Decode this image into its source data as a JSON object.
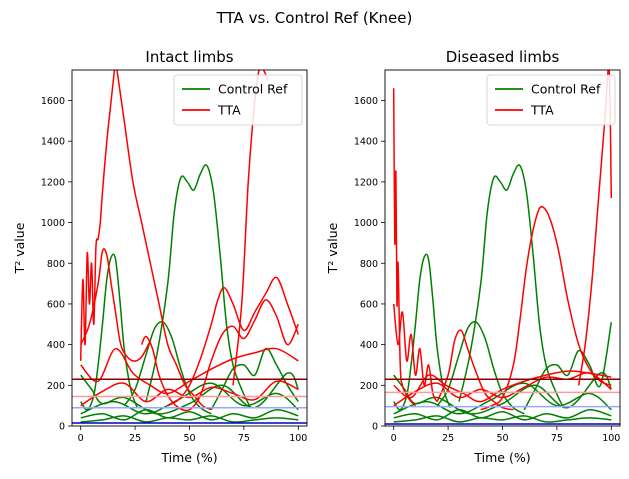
{
  "figure": {
    "suptitle": "TTA vs. Control Ref (Knee)"
  },
  "colors": {
    "control": "#008000",
    "tta": "#ff0000",
    "threshold_dark": "#8b0000",
    "threshold_light": "#9aa6ff",
    "threshold_blue": "#0000cc",
    "threshold_pink": "#ff9a9a"
  },
  "chart_data": [
    {
      "type": "line",
      "title": "Intact limbs",
      "xlabel": "Time  (%)",
      "ylabel": "T² value",
      "xlim": [
        -4,
        104
      ],
      "ylim": [
        0,
        1750
      ],
      "xticks": [
        0,
        25,
        50,
        75,
        100
      ],
      "yticks": [
        0,
        200,
        400,
        600,
        800,
        1000,
        1200,
        1400,
        1600
      ],
      "grid": false,
      "legend": {
        "placement": "top-right",
        "entries": [
          "Control Ref",
          "TTA"
        ]
      },
      "thresholds": [
        {
          "y": 230,
          "color_key": "threshold_dark"
        },
        {
          "y": 145,
          "color_key": "threshold_pink"
        },
        {
          "y": 90,
          "color_key": "threshold_light"
        },
        {
          "y": 15,
          "color_key": "threshold_blue"
        }
      ],
      "series": [
        {
          "name": "Control Ref",
          "color_key": "control",
          "x": [
            0,
            3,
            6,
            8,
            10,
            12,
            14,
            16,
            18,
            20,
            23,
            26
          ],
          "y": [
            120,
            80,
            150,
            300,
            500,
            720,
            830,
            820,
            620,
            380,
            180,
            90
          ]
        },
        {
          "color_key": "control",
          "x": [
            30,
            35,
            40,
            43,
            46,
            49,
            52,
            55,
            58,
            61,
            64,
            67,
            70,
            74,
            78
          ],
          "y": [
            120,
            350,
            700,
            1050,
            1220,
            1200,
            1160,
            1240,
            1280,
            1150,
            850,
            500,
            300,
            180,
            90
          ]
        },
        {
          "color_key": "control",
          "x": [
            20,
            25,
            30,
            34,
            38,
            42,
            46,
            50,
            55,
            60
          ],
          "y": [
            100,
            180,
            350,
            480,
            510,
            430,
            280,
            160,
            90,
            60
          ]
        },
        {
          "color_key": "control",
          "x": [
            60,
            65,
            70,
            75,
            80,
            85,
            90,
            95,
            100
          ],
          "y": [
            80,
            180,
            280,
            300,
            250,
            380,
            300,
            200,
            120
          ]
        },
        {
          "color_key": "control",
          "x": [
            0,
            10,
            20,
            30,
            40,
            50,
            60,
            70,
            80,
            90,
            100
          ],
          "y": [
            40,
            60,
            30,
            80,
            40,
            70,
            30,
            60,
            40,
            80,
            50
          ]
        },
        {
          "color_key": "control",
          "x": [
            0,
            10,
            20,
            30,
            40,
            50,
            60,
            70,
            80,
            90,
            100
          ],
          "y": [
            20,
            30,
            50,
            20,
            40,
            30,
            50,
            20,
            30,
            40,
            30
          ]
        },
        {
          "color_key": "control",
          "x": [
            0,
            15,
            30,
            45,
            60,
            75,
            90,
            100
          ],
          "y": [
            60,
            120,
            60,
            130,
            210,
            100,
            160,
            80
          ]
        },
        {
          "color_key": "control",
          "x": [
            0,
            5,
            10,
            20,
            35,
            50,
            65,
            80,
            95,
            100
          ],
          "y": [
            250,
            180,
            110,
            140,
            60,
            110,
            200,
            90,
            260,
            180
          ]
        },
        {
          "name": "TTA",
          "color_key": "tta",
          "x": [
            0,
            1,
            2,
            3,
            4,
            5,
            6,
            7,
            8,
            9,
            10,
            12,
            14,
            16
          ],
          "y": [
            320,
            720,
            400,
            850,
            600,
            800,
            500,
            880,
            920,
            1000,
            1150,
            1400,
            1600,
            1800
          ]
        },
        {
          "color_key": "tta",
          "x": [
            16,
            20,
            24,
            28,
            32,
            36,
            40,
            44,
            48,
            52,
            56,
            60
          ],
          "y": [
            1800,
            1500,
            1200,
            1000,
            800,
            600,
            400,
            300,
            200,
            150,
            100,
            80
          ]
        },
        {
          "color_key": "tta",
          "x": [
            0,
            4,
            8,
            10,
            12,
            14,
            16,
            18,
            20,
            24,
            28,
            32
          ],
          "y": [
            400,
            500,
            700,
            860,
            840,
            700,
            560,
            420,
            360,
            320,
            340,
            420
          ]
        },
        {
          "color_key": "tta",
          "x": [
            28,
            30,
            33,
            36,
            40,
            45,
            50,
            55,
            60,
            65,
            70,
            75,
            80,
            85,
            90,
            95,
            100
          ],
          "y": [
            400,
            440,
            380,
            250,
            150,
            90,
            80,
            150,
            320,
            450,
            490,
            430,
            520,
            620,
            540,
            400,
            500
          ]
        },
        {
          "color_key": "tta",
          "x": [
            40,
            45,
            50,
            55,
            60,
            63,
            66,
            70,
            75,
            80,
            85,
            90,
            95,
            100
          ],
          "y": [
            100,
            130,
            200,
            330,
            500,
            620,
            680,
            600,
            470,
            560,
            650,
            730,
            600,
            450
          ]
        },
        {
          "color_key": "tta",
          "x": [
            70,
            74,
            77,
            80,
            82,
            84,
            86
          ],
          "y": [
            200,
            600,
            1200,
            1600,
            1750,
            1750,
            1700
          ]
        },
        {
          "color_key": "tta",
          "x": [
            0,
            10,
            20,
            30,
            40,
            50,
            60,
            70,
            80,
            90,
            100
          ],
          "y": [
            100,
            170,
            210,
            120,
            180,
            140,
            190,
            160,
            130,
            220,
            180
          ]
        },
        {
          "color_key": "tta",
          "x": [
            0,
            8,
            16,
            24,
            32,
            40,
            50,
            60,
            70,
            80,
            90,
            100
          ],
          "y": [
            300,
            220,
            380,
            260,
            200,
            160,
            220,
            280,
            330,
            360,
            380,
            320
          ]
        }
      ]
    },
    {
      "type": "line",
      "title": "Diseased limbs",
      "xlabel": "Time  (%)",
      "ylabel": "T² value",
      "xlim": [
        -4,
        104
      ],
      "ylim": [
        0,
        1750
      ],
      "xticks": [
        0,
        25,
        50,
        75,
        100
      ],
      "yticks": [
        0,
        200,
        400,
        600,
        800,
        1000,
        1200,
        1400,
        1600
      ],
      "grid": false,
      "legend": {
        "placement": "top-right",
        "entries": [
          "Control Ref",
          "TTA"
        ]
      },
      "thresholds": [
        {
          "y": 230,
          "color_key": "threshold_dark"
        },
        {
          "y": 165,
          "color_key": "threshold_pink"
        },
        {
          "y": 95,
          "color_key": "threshold_light"
        },
        {
          "y": 10,
          "color_key": "threshold_blue"
        }
      ],
      "series": [
        {
          "name": "Control Ref",
          "color_key": "control",
          "x": [
            0,
            3,
            6,
            8,
            10,
            12,
            14,
            16,
            18,
            20,
            23,
            26
          ],
          "y": [
            120,
            80,
            150,
            300,
            500,
            720,
            830,
            820,
            620,
            380,
            180,
            90
          ]
        },
        {
          "color_key": "control",
          "x": [
            30,
            35,
            40,
            43,
            46,
            49,
            52,
            55,
            58,
            61,
            64,
            67,
            70,
            74,
            78
          ],
          "y": [
            120,
            350,
            700,
            1050,
            1220,
            1200,
            1160,
            1240,
            1280,
            1150,
            850,
            500,
            300,
            180,
            90
          ]
        },
        {
          "color_key": "control",
          "x": [
            20,
            25,
            30,
            34,
            38,
            42,
            46,
            50,
            55,
            60
          ],
          "y": [
            100,
            180,
            350,
            480,
            510,
            430,
            280,
            160,
            90,
            60
          ]
        },
        {
          "color_key": "control",
          "x": [
            60,
            65,
            70,
            75,
            80,
            85,
            90,
            95,
            100
          ],
          "y": [
            80,
            180,
            280,
            300,
            250,
            370,
            300,
            200,
            510
          ]
        },
        {
          "color_key": "control",
          "x": [
            0,
            10,
            20,
            30,
            40,
            50,
            60,
            70,
            80,
            90,
            100
          ],
          "y": [
            40,
            60,
            30,
            80,
            40,
            70,
            30,
            60,
            40,
            80,
            50
          ]
        },
        {
          "color_key": "control",
          "x": [
            0,
            10,
            20,
            30,
            40,
            50,
            60,
            70,
            80,
            90,
            100
          ],
          "y": [
            20,
            30,
            50,
            20,
            40,
            30,
            50,
            20,
            30,
            40,
            30
          ]
        },
        {
          "color_key": "control",
          "x": [
            0,
            15,
            30,
            45,
            60,
            75,
            90,
            100
          ],
          "y": [
            60,
            120,
            60,
            130,
            210,
            100,
            160,
            80
          ]
        },
        {
          "color_key": "control",
          "x": [
            0,
            5,
            10,
            20,
            35,
            50,
            65,
            80,
            95,
            100
          ],
          "y": [
            250,
            180,
            110,
            140,
            60,
            110,
            200,
            90,
            260,
            180
          ]
        },
        {
          "name": "TTA",
          "color_key": "tta",
          "x": [
            0,
            0.5,
            1,
            1.5,
            2,
            3,
            4,
            6,
            8,
            10
          ],
          "y": [
            1660,
            900,
            1250,
            600,
            800,
            300,
            200,
            150,
            120,
            100
          ]
        },
        {
          "color_key": "tta",
          "x": [
            0,
            2,
            4,
            6,
            8,
            10,
            12,
            14,
            16,
            18,
            20
          ],
          "y": [
            600,
            400,
            560,
            320,
            450,
            250,
            380,
            200,
            300,
            160,
            120
          ]
        },
        {
          "color_key": "tta",
          "x": [
            20,
            25,
            28,
            31,
            34,
            38,
            42,
            46,
            50,
            55
          ],
          "y": [
            120,
            250,
            420,
            470,
            380,
            260,
            160,
            120,
            90,
            80
          ]
        },
        {
          "color_key": "tta",
          "x": [
            40,
            45,
            50,
            55,
            58,
            61,
            64,
            67,
            70,
            73,
            76,
            80,
            85,
            90,
            95,
            100
          ],
          "y": [
            80,
            100,
            140,
            300,
            520,
            780,
            960,
            1070,
            1060,
            980,
            850,
            620,
            400,
            280,
            220,
            200
          ]
        },
        {
          "color_key": "tta",
          "x": [
            85,
            88,
            91,
            94,
            97,
            99,
            100
          ],
          "y": [
            200,
            400,
            700,
            1100,
            1500,
            1750,
            1120
          ]
        },
        {
          "color_key": "tta",
          "x": [
            0,
            10,
            20,
            30,
            40,
            50,
            60,
            70,
            80,
            90,
            100
          ],
          "y": [
            100,
            170,
            210,
            140,
            180,
            140,
            190,
            240,
            230,
            260,
            180
          ]
        },
        {
          "color_key": "tta",
          "x": [
            0,
            8,
            16,
            24,
            32,
            40,
            50,
            60,
            70,
            80,
            90,
            100
          ],
          "y": [
            200,
            140,
            250,
            200,
            160,
            120,
            180,
            220,
            250,
            270,
            260,
            240
          ]
        }
      ]
    }
  ]
}
